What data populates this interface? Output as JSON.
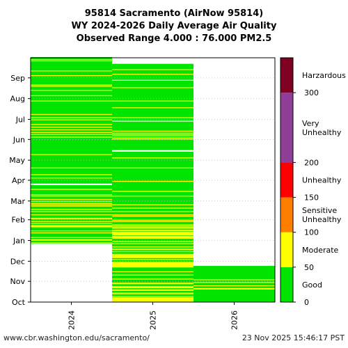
{
  "header": {
    "title_line1": "95814 Sacramento (AirNow 95814)",
    "title_line2": "WY 2024-2026 Daily Average Air Quality",
    "title_line3": "Observed Range 4.000 : 76.000 PM2.5"
  },
  "footer": {
    "source_url": "www.cbr.washington.edu/sacramento/",
    "timestamp": "23 Nov 2025 15:46:17 PST"
  },
  "chart_data": {
    "type": "heatmap",
    "x_categories": [
      "2024",
      "2025",
      "2026"
    ],
    "y_month_labels": [
      "Oct",
      "Nov",
      "Dec",
      "Jan",
      "Feb",
      "Mar",
      "Apr",
      "May",
      "Jun",
      "Jul",
      "Aug",
      "Sep"
    ],
    "y_axis_note": "water-year day from Oct 1 (bottom) to Sep 30 (top)",
    "color_scale": {
      "ticks": [
        0,
        50,
        100,
        150,
        200,
        300
      ],
      "bands": [
        {
          "label": "Good",
          "min": 0,
          "max": 50,
          "color": "#00e400"
        },
        {
          "label": "Moderate",
          "min": 50,
          "max": 100,
          "color": "#ffff00"
        },
        {
          "label": "Sensitive Unhealthy",
          "min": 100,
          "max": 150,
          "color": "#ff7e00"
        },
        {
          "label": "Unhealthy",
          "min": 150,
          "max": 200,
          "color": "#ff0000"
        },
        {
          "label": "Very Unhealthy",
          "min": 200,
          "max": 300,
          "color": "#8f3f97"
        },
        {
          "label": "Harzardous",
          "min": 300,
          "max": 350,
          "color": "#7e0023"
        }
      ]
    },
    "columns": [
      {
        "year": "2024",
        "data_start_day": 87,
        "data_end_day": 365,
        "missing_days": [
          175,
          176
        ],
        "moderate_days": [
          88,
          92,
          93,
          96,
          103,
          106,
          112,
          113,
          114,
          117,
          120,
          124,
          125,
          130,
          135,
          138,
          143,
          145,
          147,
          150,
          153,
          158,
          160,
          168,
          185,
          190,
          200,
          220,
          246,
          250,
          253,
          257,
          261,
          265,
          272,
          275,
          280,
          300,
          308,
          316,
          322,
          324,
          338,
          345,
          360,
          362
        ]
      },
      {
        "year": "2025",
        "data_start_day": 0,
        "data_end_day": 355,
        "missing_days": [
          225,
          226,
          270,
          331
        ],
        "moderate_days": [
          0,
          1,
          2,
          3,
          4,
          5,
          6,
          8,
          12,
          13,
          17,
          18,
          21,
          22,
          23,
          27,
          28,
          34,
          40,
          45,
          52,
          53,
          54,
          55,
          56,
          57,
          58,
          59,
          63,
          66,
          67,
          68,
          69,
          70,
          71,
          75,
          78,
          79,
          82,
          87,
          90,
          95,
          96,
          97,
          98,
          100,
          101,
          102,
          103,
          104,
          106,
          107,
          110,
          111,
          113,
          115,
          120,
          122,
          128,
          130,
          135,
          140,
          145,
          158,
          165,
          180,
          200,
          215,
          243,
          245,
          248,
          250,
          252,
          255,
          275,
          290,
          300,
          320,
          340,
          347
        ]
      },
      {
        "year": "2026",
        "data_start_day": 0,
        "data_end_day": 53,
        "missing_days": [],
        "moderate_days": [
          19,
          20,
          24,
          29,
          33
        ]
      }
    ]
  }
}
